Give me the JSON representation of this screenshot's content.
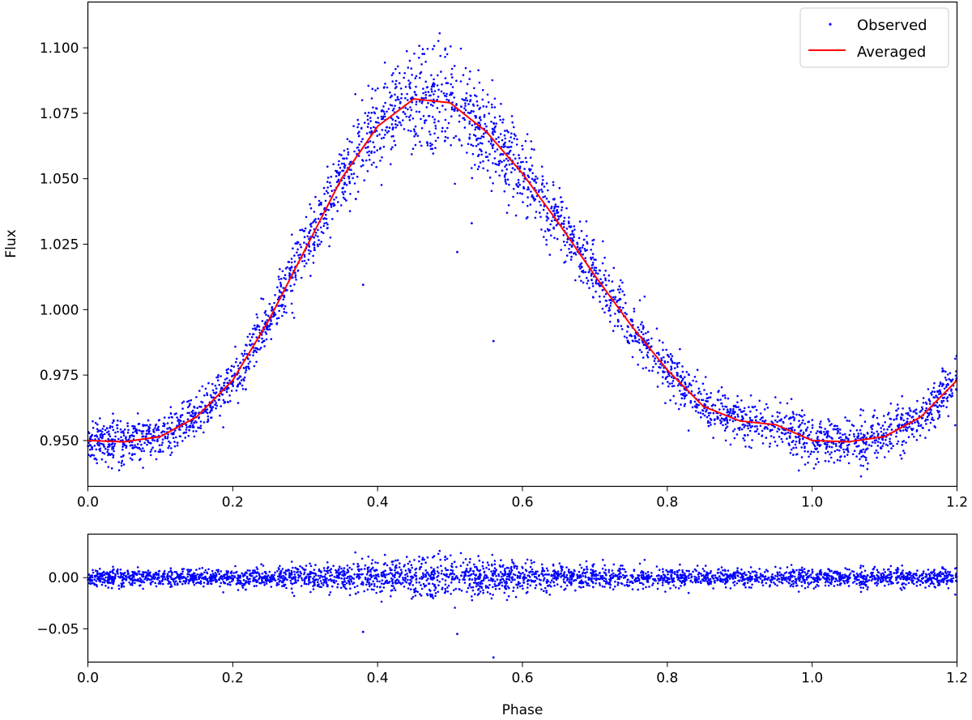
{
  "chart_data": [
    {
      "type": "scatter",
      "title": "",
      "xlabel": "",
      "ylabel": "Flux",
      "xlim": [
        0.0,
        1.2
      ],
      "ylim": [
        0.9325,
        1.1175
      ],
      "xticks": [
        "0.0",
        "0.2",
        "0.4",
        "0.6",
        "0.8",
        "1.0",
        "1.2"
      ],
      "yticks": [
        "0.950",
        "0.975",
        "1.000",
        "1.025",
        "1.050",
        "1.075",
        "1.100"
      ],
      "grid": false,
      "legend": {
        "placement": "top-right",
        "entries": [
          "Observed",
          "Averaged"
        ]
      },
      "series": [
        {
          "name": "Observed",
          "kind": "points",
          "color": "#0000ff",
          "approx_point_count": 12000,
          "scatter_sd": 0.0055,
          "envelope_note_values": "spread grows toward peak"
        },
        {
          "name": "Averaged",
          "kind": "line",
          "color": "#ff0000",
          "x": [
            0.0,
            0.05,
            0.1,
            0.15,
            0.2,
            0.25,
            0.3,
            0.35,
            0.4,
            0.45,
            0.5,
            0.55,
            0.6,
            0.65,
            0.7,
            0.75,
            0.8,
            0.85,
            0.9,
            0.95,
            1.0,
            1.05,
            1.1,
            1.15,
            1.2
          ],
          "y": [
            0.95,
            0.9495,
            0.9515,
            0.959,
            0.973,
            0.996,
            1.023,
            1.05,
            1.07,
            1.0805,
            1.079,
            1.068,
            1.052,
            1.033,
            1.013,
            0.994,
            0.977,
            0.963,
            0.9575,
            0.956,
            0.95,
            0.9495,
            0.9515,
            0.959,
            0.973
          ]
        }
      ],
      "outliers": [
        {
          "x": 0.38,
          "y": 1.0095
        },
        {
          "x": 0.51,
          "y": 1.022
        },
        {
          "x": 0.53,
          "y": 1.033
        },
        {
          "x": 0.56,
          "y": 0.988
        }
      ]
    },
    {
      "type": "scatter",
      "title": "",
      "xlabel": "Phase",
      "ylabel": "",
      "xlim": [
        0.0,
        1.2
      ],
      "ylim": [
        -0.0825,
        0.0425
      ],
      "xticks": [
        "0.0",
        "0.2",
        "0.4",
        "0.6",
        "0.8",
        "1.0",
        "1.2"
      ],
      "yticks": [
        "0.00",
        "−0.05"
      ],
      "grid": false,
      "series": [
        {
          "name": "",
          "kind": "points",
          "color": "#0000ff",
          "approx_point_count": 12000,
          "scatter_sd": 0.006
        }
      ],
      "outliers": [
        {
          "x": 0.38,
          "y": -0.053
        },
        {
          "x": 0.51,
          "y": -0.055
        },
        {
          "x": 0.56,
          "y": -0.078
        }
      ]
    }
  ]
}
